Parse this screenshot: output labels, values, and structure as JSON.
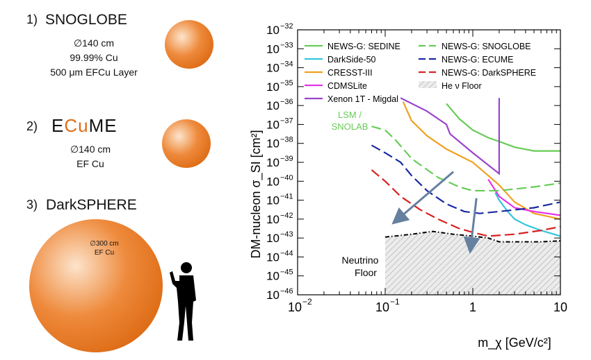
{
  "left_panel": {
    "item1": {
      "index": "1)",
      "title": "SNOGLOBE",
      "specs": [
        "∅140 cm",
        "99.99% Cu",
        "500 μm EFCu Layer"
      ]
    },
    "item2": {
      "index": "2)",
      "title_prefix": "E",
      "title_mid": "Cu",
      "title_suffix": "ME",
      "specs": [
        "∅140 cm",
        "EF Cu"
      ]
    },
    "item3": {
      "index": "3)",
      "title": "DarkSPHERE",
      "sphere_label": [
        "∅300 cm",
        "EF Cu"
      ]
    }
  },
  "colors": {
    "sphere_core": "#fde4cc",
    "sphere_edge": "#de6d17",
    "sedine": "#66cc55",
    "darkside": "#33c6dc",
    "cresst": "#f0a020",
    "cdmslite": "#e633e6",
    "xenon": "#9944cc",
    "snoglobe": "#66cc55",
    "ecume": "#1a2aa0",
    "darksphere": "#d82020",
    "arrow": "#6680a0"
  },
  "chart_data": {
    "type": "line",
    "title": "",
    "xlabel": "m_χ [GeV/c²]",
    "ylabel": "DM-nucleon σ_SI [cm²]",
    "xscale": "log",
    "yscale": "log",
    "xlim": [
      0.01,
      10
    ],
    "ylim": [
      1e-46,
      1e-32
    ],
    "x_ticks": [
      {
        "v": 0.01,
        "label": "10",
        "exp": "−2"
      },
      {
        "v": 0.1,
        "label": "10",
        "exp": "−1"
      },
      {
        "v": 1,
        "label": "1",
        "exp": ""
      },
      {
        "v": 10,
        "label": "10",
        "exp": ""
      }
    ],
    "y_ticks": [
      {
        "v": -32,
        "label": "10",
        "exp": "−32"
      },
      {
        "v": -33,
        "label": "10",
        "exp": "−33"
      },
      {
        "v": -34,
        "label": "10",
        "exp": "−34"
      },
      {
        "v": -35,
        "label": "10",
        "exp": "−35"
      },
      {
        "v": -36,
        "label": "10",
        "exp": "−36"
      },
      {
        "v": -37,
        "label": "10",
        "exp": "−37"
      },
      {
        "v": -38,
        "label": "10",
        "exp": "−38"
      },
      {
        "v": -39,
        "label": "10",
        "exp": "−39"
      },
      {
        "v": -40,
        "label": "10",
        "exp": "−40"
      },
      {
        "v": -41,
        "label": "10",
        "exp": "−41"
      },
      {
        "v": -42,
        "label": "10",
        "exp": "−42"
      },
      {
        "v": -43,
        "label": "10",
        "exp": "−43"
      },
      {
        "v": -44,
        "label": "10",
        "exp": "−44"
      },
      {
        "v": -45,
        "label": "10",
        "exp": "−45"
      },
      {
        "v": -46,
        "label": "10",
        "exp": "−46"
      }
    ],
    "legend": [
      {
        "name": "NEWS-G: SEDINE",
        "color": "#66cc55",
        "dash": "solid"
      },
      {
        "name": "DarkSide-50",
        "color": "#33c6dc",
        "dash": "solid"
      },
      {
        "name": "CRESST-III",
        "color": "#f0a020",
        "dash": "solid"
      },
      {
        "name": "CDMSLite",
        "color": "#e633e6",
        "dash": "solid"
      },
      {
        "name": "Xenon 1T - Migdal",
        "color": "#9944cc",
        "dash": "solid"
      },
      {
        "name": "NEWS-G: SNOGLOBE",
        "color": "#66cc55",
        "dash": "dashed"
      },
      {
        "name": "NEWS-G: ECUME",
        "color": "#1a2aa0",
        "dash": "dashed"
      },
      {
        "name": "NEWS-G: DarkSPHERE",
        "color": "#d82020",
        "dash": "dashed"
      },
      {
        "name": "He ν Floor",
        "color": "#888888",
        "dash": "hatch"
      }
    ],
    "annotations": [
      "LSM /",
      "SNOLAB",
      "Neutrino",
      "Floor"
    ],
    "series": [
      {
        "name": "NEWS-G: SEDINE",
        "color": "#66cc55",
        "dash": "solid",
        "points": [
          [
            0.5,
            -35.9
          ],
          [
            0.7,
            -36.7
          ],
          [
            1,
            -37.3
          ],
          [
            1.5,
            -37.7
          ],
          [
            2,
            -37.9
          ],
          [
            3,
            -38.2
          ],
          [
            5,
            -38.4
          ],
          [
            10,
            -38.4
          ]
        ]
      },
      {
        "name": "DarkSide-50",
        "color": "#33c6dc",
        "dash": "solid",
        "points": [
          [
            1.8,
            -40.6
          ],
          [
            2,
            -41.0
          ],
          [
            2.5,
            -41.6
          ],
          [
            3,
            -42.0
          ],
          [
            4,
            -42.3
          ],
          [
            6,
            -42.6
          ],
          [
            10,
            -42.9
          ]
        ]
      },
      {
        "name": "CRESST-III",
        "color": "#f0a020",
        "dash": "solid",
        "points": [
          [
            0.16,
            -35.8
          ],
          [
            0.2,
            -36.8
          ],
          [
            0.3,
            -37.6
          ],
          [
            0.5,
            -38.3
          ],
          [
            1,
            -39.0
          ],
          [
            1.5,
            -39.7
          ],
          [
            2,
            -40.2
          ],
          [
            3,
            -41.1
          ],
          [
            5,
            -41.7
          ],
          [
            10,
            -42.0
          ]
        ]
      },
      {
        "name": "CDMSLite",
        "color": "#e633e6",
        "dash": "solid",
        "points": [
          [
            1.5,
            -39.9
          ],
          [
            2,
            -40.8
          ],
          [
            3,
            -41.4
          ],
          [
            5,
            -41.6
          ],
          [
            10,
            -41.8
          ]
        ]
      },
      {
        "name": "Xenon 1T - Migdal",
        "color": "#9944cc",
        "dash": "solid",
        "points": [
          [
            0.15,
            -35.6
          ],
          [
            0.3,
            -36.3
          ],
          [
            0.5,
            -37.0
          ],
          [
            0.55,
            -37.5
          ],
          [
            1,
            -38.5
          ],
          [
            2,
            -39.6
          ],
          [
            2,
            -35.6
          ]
        ]
      },
      {
        "name": "NEWS-G: SNOGLOBE",
        "color": "#66cc55",
        "dash": "dashed",
        "points": [
          [
            0.07,
            -37.1
          ],
          [
            0.1,
            -37.3
          ],
          [
            0.13,
            -37.8
          ],
          [
            0.2,
            -38.8
          ],
          [
            0.4,
            -39.8
          ],
          [
            0.7,
            -40.3
          ],
          [
            1,
            -40.5
          ],
          [
            2,
            -40.5
          ],
          [
            5,
            -40.3
          ],
          [
            10,
            -40.1
          ]
        ]
      },
      {
        "name": "NEWS-G: ECUME",
        "color": "#1a2aa0",
        "dash": "dashed",
        "points": [
          [
            0.07,
            -38.1
          ],
          [
            0.1,
            -38.5
          ],
          [
            0.15,
            -39.0
          ],
          [
            0.2,
            -39.7
          ],
          [
            0.3,
            -40.5
          ],
          [
            0.5,
            -41.2
          ],
          [
            0.8,
            -41.6
          ],
          [
            1.2,
            -41.7
          ],
          [
            2,
            -41.6
          ],
          [
            5,
            -41.4
          ],
          [
            10,
            -41.1
          ]
        ]
      },
      {
        "name": "NEWS-G: DarkSPHERE",
        "color": "#d82020",
        "dash": "dashed",
        "points": [
          [
            0.07,
            -39.4
          ],
          [
            0.1,
            -40.0
          ],
          [
            0.15,
            -40.8
          ],
          [
            0.25,
            -41.5
          ],
          [
            0.4,
            -42.0
          ],
          [
            0.7,
            -42.5
          ],
          [
            1,
            -42.7
          ],
          [
            1.5,
            -42.9
          ],
          [
            3,
            -42.8
          ],
          [
            6,
            -42.6
          ],
          [
            10,
            -42.4
          ]
        ]
      },
      {
        "name": "He ν Floor",
        "color": "#000000",
        "dash": "dashdot",
        "points": [
          [
            0.1,
            -42.95
          ],
          [
            0.2,
            -42.8
          ],
          [
            0.35,
            -42.65
          ],
          [
            0.6,
            -42.8
          ],
          [
            1,
            -42.9
          ],
          [
            1.5,
            -43.0
          ],
          [
            2,
            -43.2
          ],
          [
            3,
            -43.2
          ],
          [
            6,
            -43.2
          ],
          [
            10,
            -43.15
          ]
        ]
      }
    ],
    "arrows": [
      {
        "from": [
          0.6,
          -39.5
        ],
        "to": [
          0.14,
          -42.0
        ]
      },
      {
        "from": [
          1.1,
          -40.9
        ],
        "to": [
          0.95,
          -43.4
        ]
      }
    ]
  }
}
